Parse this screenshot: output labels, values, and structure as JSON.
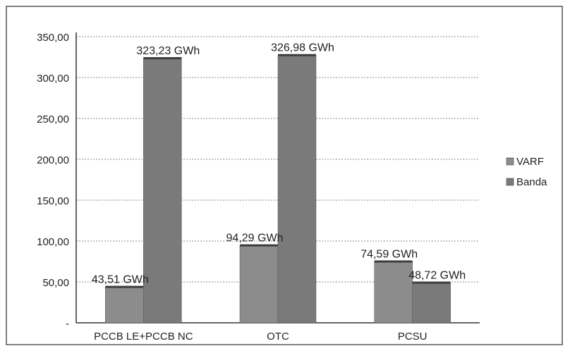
{
  "chart_data": {
    "type": "bar",
    "categories": [
      "PCCB LE+PCCB NC",
      "OTC",
      "PCSU"
    ],
    "series": [
      {
        "name": "VARF",
        "values": [
          43.51,
          94.29,
          74.59
        ],
        "labels": [
          "43,51 GWh",
          "94,29 GWh",
          "74,59 GWh"
        ],
        "color": "#8c8c8c"
      },
      {
        "name": "Banda",
        "values": [
          323.23,
          326.98,
          48.72
        ],
        "labels": [
          "323,23 GWh",
          "326,98 GWh",
          "48,72 GWh"
        ],
        "color": "#7a7a7a"
      }
    ],
    "ylim": [
      0,
      350
    ],
    "yticks": [
      {
        "value": 0,
        "label": "-"
      },
      {
        "value": 50,
        "label": "50,00"
      },
      {
        "value": 100,
        "label": "100,00"
      },
      {
        "value": 150,
        "label": "150,00"
      },
      {
        "value": 200,
        "label": "200,00"
      },
      {
        "value": 250,
        "label": "250,00"
      },
      {
        "value": 300,
        "label": "300,00"
      },
      {
        "value": 350,
        "label": "350,00"
      }
    ],
    "grid": true,
    "legend": "right",
    "title": "",
    "xlabel": "",
    "ylabel": ""
  }
}
